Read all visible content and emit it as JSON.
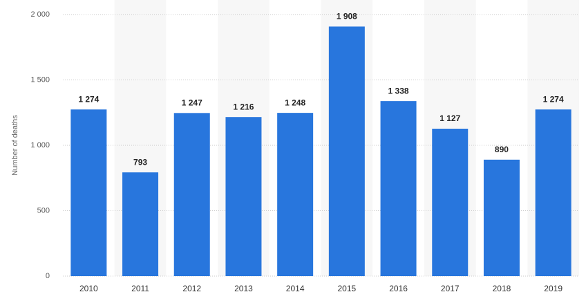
{
  "chart_data": {
    "type": "bar",
    "y_label": "Number of deaths",
    "categories": [
      "2010",
      "2011",
      "2012",
      "2013",
      "2014",
      "2015",
      "2016",
      "2017",
      "2018",
      "2019"
    ],
    "values": [
      1274,
      793,
      1247,
      1216,
      1248,
      1908,
      1338,
      1127,
      890,
      1274
    ],
    "value_labels": [
      "1 274",
      "793",
      "1 247",
      "1 216",
      "1 248",
      "1 908",
      "1 338",
      "1 127",
      "890",
      "1 274"
    ],
    "color": "#2876dd",
    "ylim": [
      0,
      2000
    ],
    "yticks": [
      0,
      500,
      {
        "value": 1000,
        "label": "1 000"
      },
      {
        "value": 1500,
        "label": "1 500"
      },
      {
        "value": 2000,
        "label": "2 000"
      }
    ],
    "grid": true
  }
}
